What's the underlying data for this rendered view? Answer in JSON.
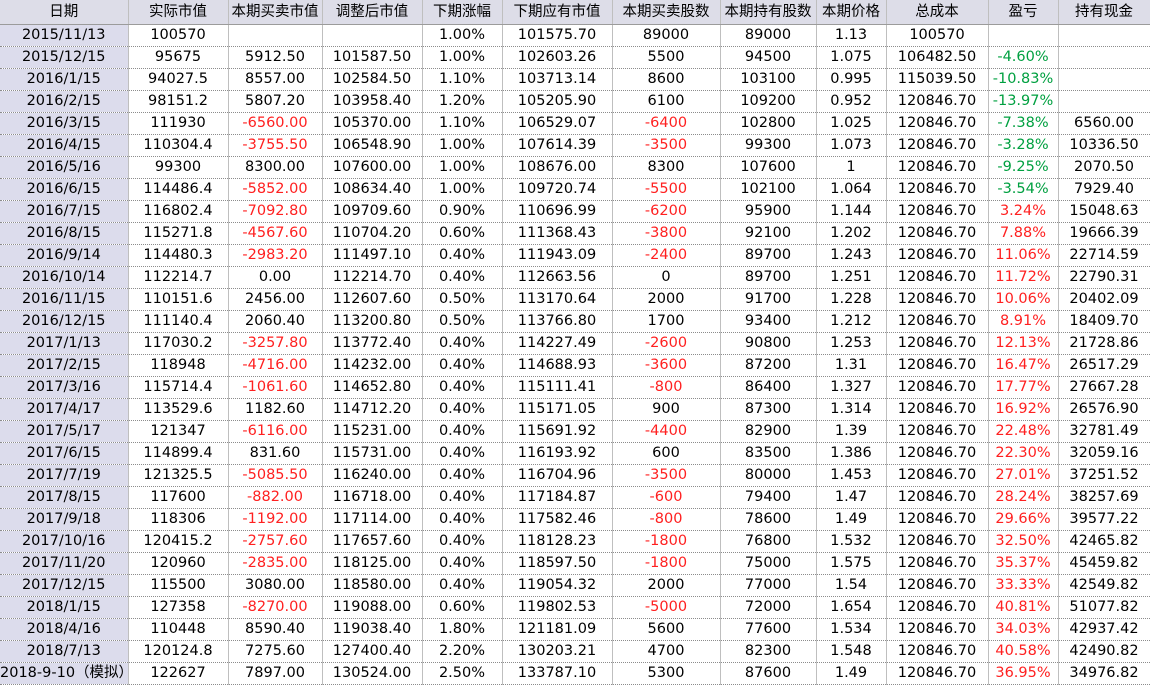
{
  "headers": [
    "日期",
    "实际市值",
    "本期买卖市值",
    "调整后市值",
    "下期涨幅",
    "下期应有市值",
    "本期买卖股数",
    "本期持有股数",
    "本期价格",
    "总成本",
    "盈亏",
    "持有现金"
  ],
  "rows": [
    [
      "2015/11/13",
      "100570",
      "",
      "",
      "1.00%",
      "101575.70",
      "89000",
      "89000",
      "1.13",
      "100570",
      "",
      ""
    ],
    [
      "2015/12/15",
      "95675",
      "5912.50",
      "101587.50",
      "1.00%",
      "102603.26",
      "5500",
      "94500",
      "1.075",
      "106482.50",
      "-4.60%",
      ""
    ],
    [
      "2016/1/15",
      "94027.5",
      "8557.00",
      "102584.50",
      "1.10%",
      "103713.14",
      "8600",
      "103100",
      "0.995",
      "115039.50",
      "-10.83%",
      ""
    ],
    [
      "2016/2/15",
      "98151.2",
      "5807.20",
      "103958.40",
      "1.20%",
      "105205.90",
      "6100",
      "109200",
      "0.952",
      "120846.70",
      "-13.97%",
      ""
    ],
    [
      "2016/3/15",
      "111930",
      "-6560.00",
      "105370.00",
      "1.10%",
      "106529.07",
      "-6400",
      "102800",
      "1.025",
      "120846.70",
      "-7.38%",
      "6560.00"
    ],
    [
      "2016/4/15",
      "110304.4",
      "-3755.50",
      "106548.90",
      "1.00%",
      "107614.39",
      "-3500",
      "99300",
      "1.073",
      "120846.70",
      "-3.28%",
      "10336.50"
    ],
    [
      "2016/5/16",
      "99300",
      "8300.00",
      "107600.00",
      "1.00%",
      "108676.00",
      "8300",
      "107600",
      "1",
      "120846.70",
      "-9.25%",
      "2070.50"
    ],
    [
      "2016/6/15",
      "114486.4",
      "-5852.00",
      "108634.40",
      "1.00%",
      "109720.74",
      "-5500",
      "102100",
      "1.064",
      "120846.70",
      "-3.54%",
      "7929.40"
    ],
    [
      "2016/7/15",
      "116802.4",
      "-7092.80",
      "109709.60",
      "0.90%",
      "110696.99",
      "-6200",
      "95900",
      "1.144",
      "120846.70",
      "3.24%",
      "15048.63"
    ],
    [
      "2016/8/15",
      "115271.8",
      "-4567.60",
      "110704.20",
      "0.60%",
      "111368.43",
      "-3800",
      "92100",
      "1.202",
      "120846.70",
      "7.88%",
      "19666.39"
    ],
    [
      "2016/9/14",
      "114480.3",
      "-2983.20",
      "111497.10",
      "0.40%",
      "111943.09",
      "-2400",
      "89700",
      "1.243",
      "120846.70",
      "11.06%",
      "22714.59"
    ],
    [
      "2016/10/14",
      "112214.7",
      "0.00",
      "112214.70",
      "0.40%",
      "112663.56",
      "0",
      "89700",
      "1.251",
      "120846.70",
      "11.72%",
      "22790.31"
    ],
    [
      "2016/11/15",
      "110151.6",
      "2456.00",
      "112607.60",
      "0.50%",
      "113170.64",
      "2000",
      "91700",
      "1.228",
      "120846.70",
      "10.06%",
      "20402.09"
    ],
    [
      "2016/12/15",
      "111140.4",
      "2060.40",
      "113200.80",
      "0.50%",
      "113766.80",
      "1700",
      "93400",
      "1.212",
      "120846.70",
      "8.91%",
      "18409.70"
    ],
    [
      "2017/1/13",
      "117030.2",
      "-3257.80",
      "113772.40",
      "0.40%",
      "114227.49",
      "-2600",
      "90800",
      "1.253",
      "120846.70",
      "12.13%",
      "21728.86"
    ],
    [
      "2017/2/15",
      "118948",
      "-4716.00",
      "114232.00",
      "0.40%",
      "114688.93",
      "-3600",
      "87200",
      "1.31",
      "120846.70",
      "16.47%",
      "26517.29"
    ],
    [
      "2017/3/16",
      "115714.4",
      "-1061.60",
      "114652.80",
      "0.40%",
      "115111.41",
      "-800",
      "86400",
      "1.327",
      "120846.70",
      "17.77%",
      "27667.28"
    ],
    [
      "2017/4/17",
      "113529.6",
      "1182.60",
      "114712.20",
      "0.40%",
      "115171.05",
      "900",
      "87300",
      "1.314",
      "120846.70",
      "16.92%",
      "26576.90"
    ],
    [
      "2017/5/17",
      "121347",
      "-6116.00",
      "115231.00",
      "0.40%",
      "115691.92",
      "-4400",
      "82900",
      "1.39",
      "120846.70",
      "22.48%",
      "32781.49"
    ],
    [
      "2017/6/15",
      "114899.4",
      "831.60",
      "115731.00",
      "0.40%",
      "116193.92",
      "600",
      "83500",
      "1.386",
      "120846.70",
      "22.30%",
      "32059.16"
    ],
    [
      "2017/7/19",
      "121325.5",
      "-5085.50",
      "116240.00",
      "0.40%",
      "116704.96",
      "-3500",
      "80000",
      "1.453",
      "120846.70",
      "27.01%",
      "37251.52"
    ],
    [
      "2017/8/15",
      "117600",
      "-882.00",
      "116718.00",
      "0.40%",
      "117184.87",
      "-600",
      "79400",
      "1.47",
      "120846.70",
      "28.24%",
      "38257.69"
    ],
    [
      "2017/9/18",
      "118306",
      "-1192.00",
      "117114.00",
      "0.40%",
      "117582.46",
      "-800",
      "78600",
      "1.49",
      "120846.70",
      "29.66%",
      "39577.22"
    ],
    [
      "2017/10/16",
      "120415.2",
      "-2757.60",
      "117657.60",
      "0.40%",
      "118128.23",
      "-1800",
      "76800",
      "1.532",
      "120846.70",
      "32.50%",
      "42465.82"
    ],
    [
      "2017/11/20",
      "120960",
      "-2835.00",
      "118125.00",
      "0.40%",
      "118597.50",
      "-1800",
      "75000",
      "1.575",
      "120846.70",
      "35.37%",
      "45459.82"
    ],
    [
      "2017/12/15",
      "115500",
      "3080.00",
      "118580.00",
      "0.40%",
      "119054.32",
      "2000",
      "77000",
      "1.54",
      "120846.70",
      "33.33%",
      "42549.82"
    ],
    [
      "2018/1/15",
      "127358",
      "-8270.00",
      "119088.00",
      "0.60%",
      "119802.53",
      "-5000",
      "72000",
      "1.654",
      "120846.70",
      "40.81%",
      "51077.82"
    ],
    [
      "2018/4/16",
      "110448",
      "8590.40",
      "119038.40",
      "1.80%",
      "121181.09",
      "5600",
      "77600",
      "1.534",
      "120846.70",
      "34.03%",
      "42937.42"
    ],
    [
      "2018/7/13",
      "120124.8",
      "7275.60",
      "127400.40",
      "2.20%",
      "130203.21",
      "4700",
      "82300",
      "1.548",
      "120846.70",
      "40.58%",
      "42490.82"
    ],
    [
      "2018-9-10（模拟）",
      "122627",
      "7897.00",
      "130524.00",
      "2.50%",
      "133787.10",
      "5300",
      "87600",
      "1.49",
      "120846.70",
      "36.95%",
      "34976.82"
    ]
  ],
  "colors": {
    "negative": "#ff2020",
    "loss_pct": "#00a040",
    "header_bg": "#dddde8",
    "date_bg": "#dcdcec"
  }
}
